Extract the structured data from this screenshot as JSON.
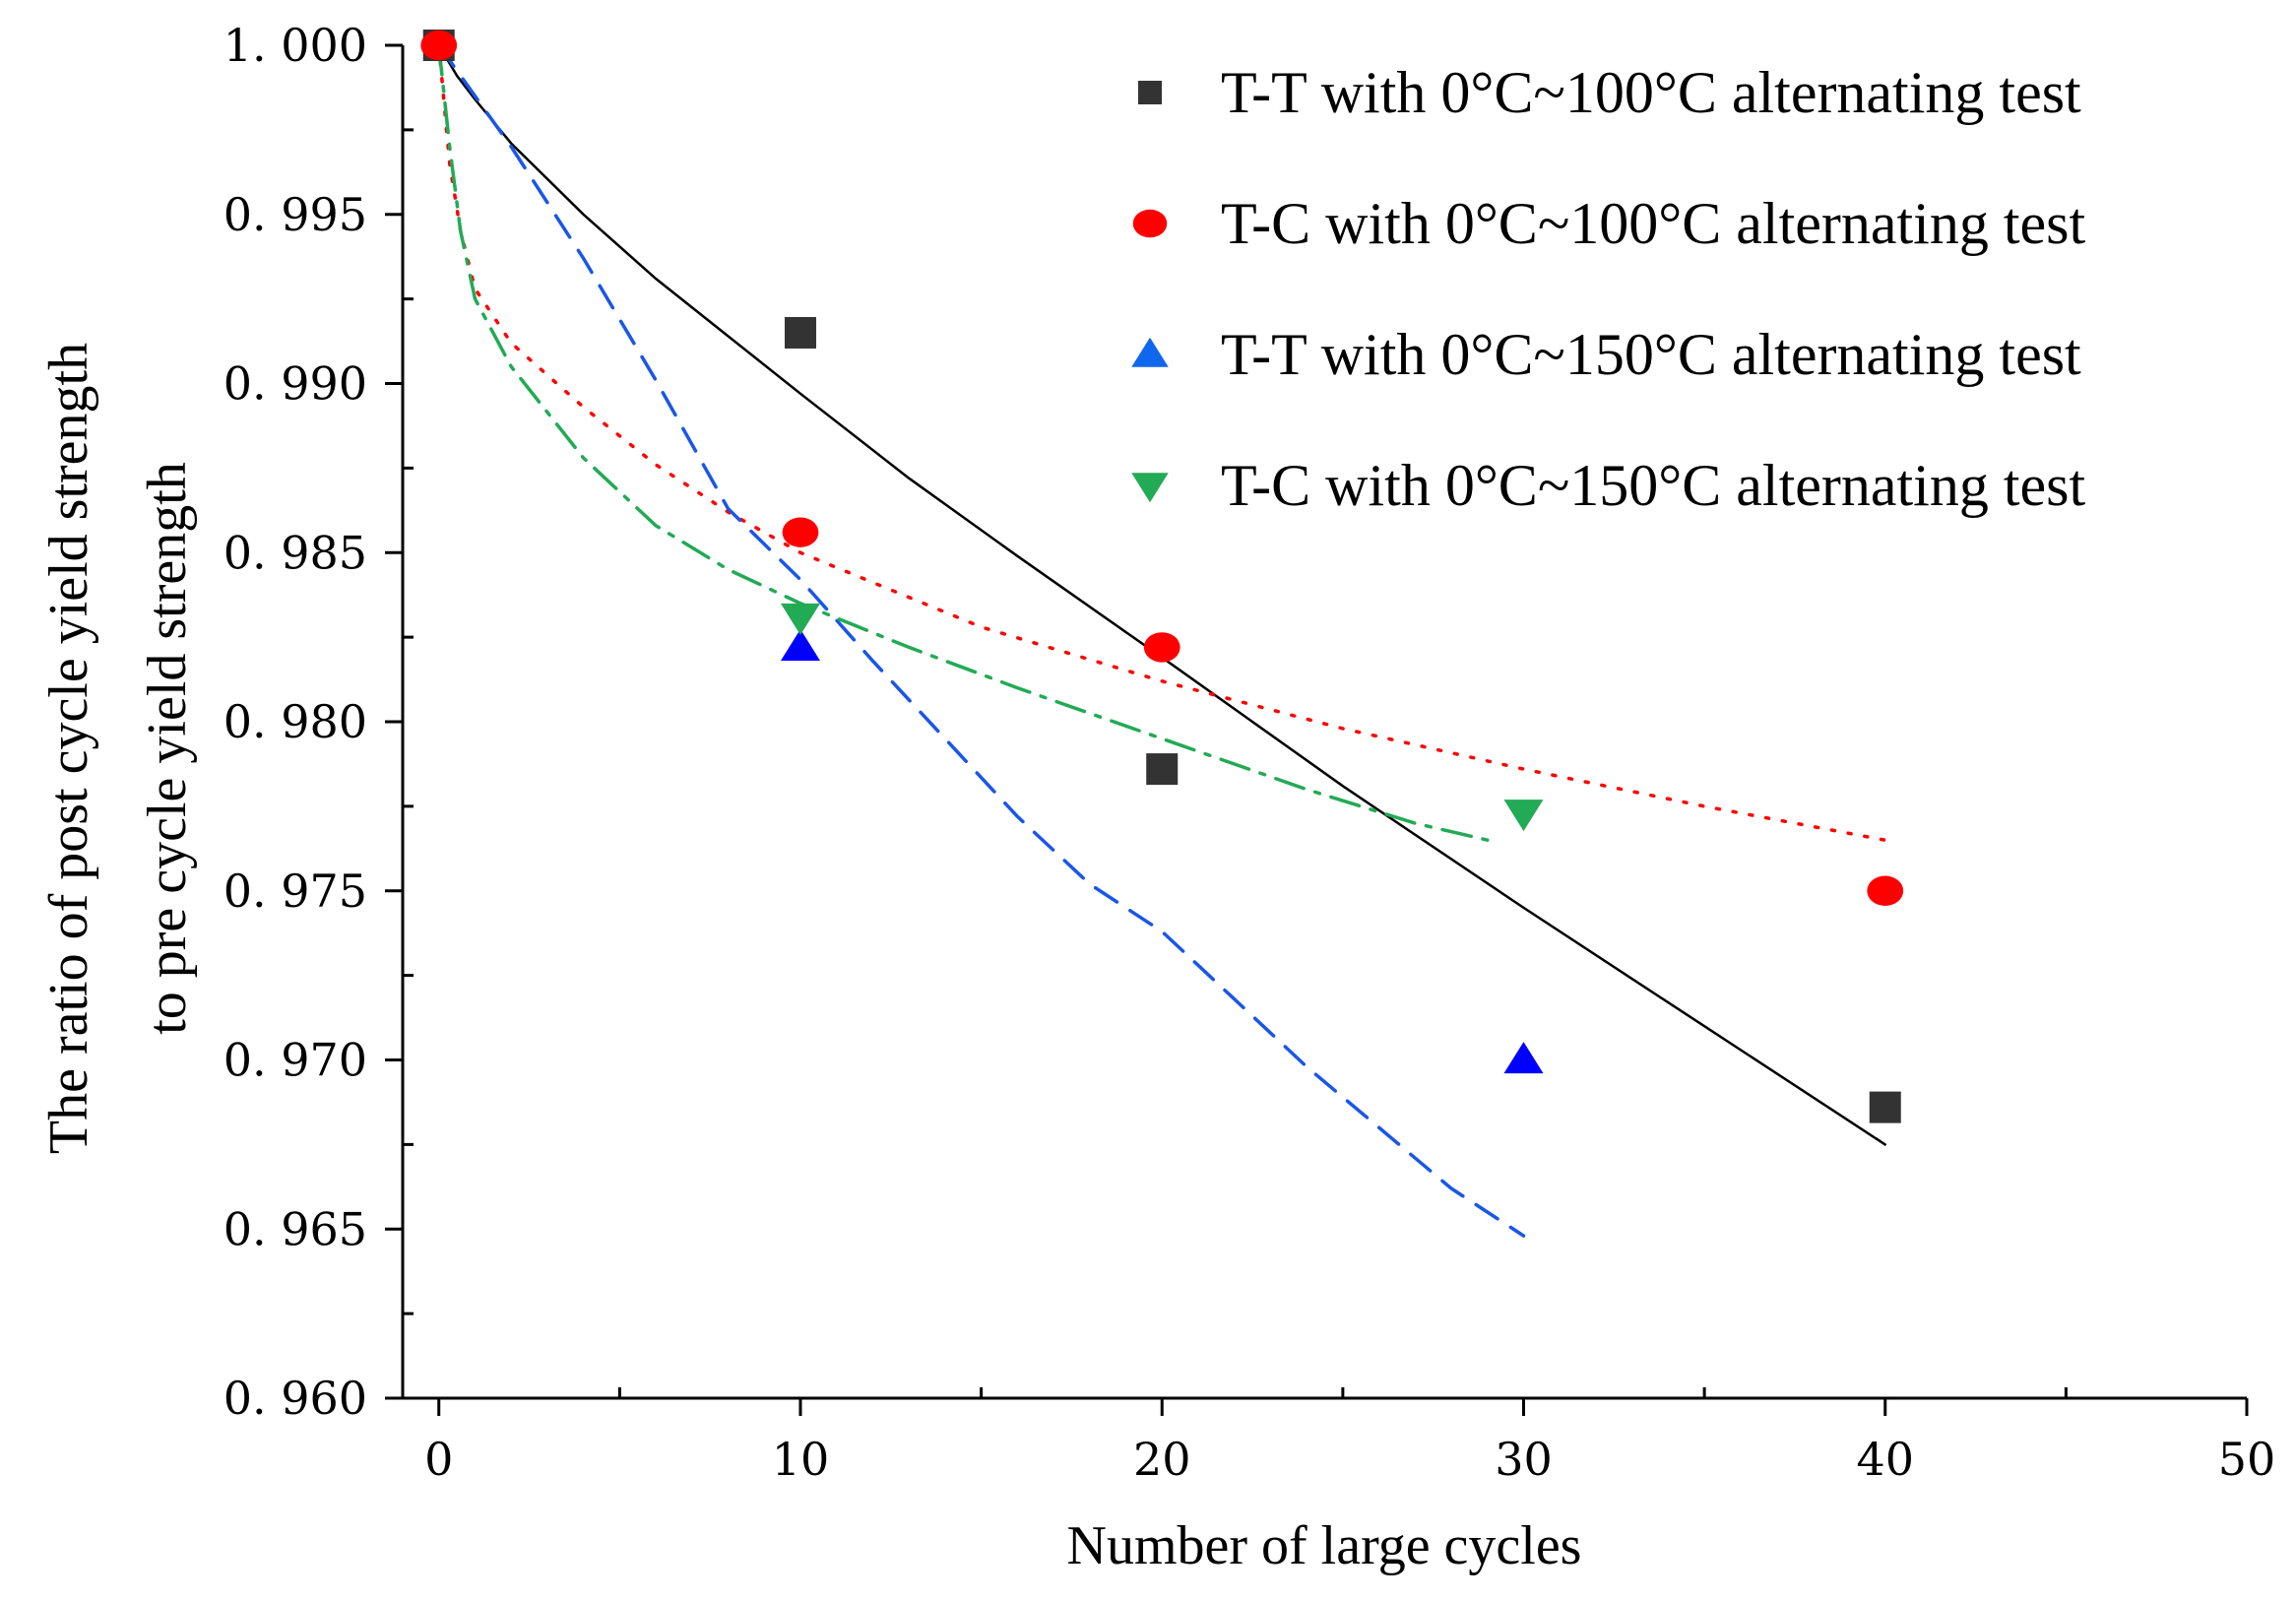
{
  "chart_data": {
    "type": "scatter",
    "xlabel": "Number of large cycles",
    "ylabel_lines": [
      "The ratio of post cycle yield strength",
      "to pre cycle yield strength"
    ],
    "xlim": [
      -1,
      50
    ],
    "ylim": [
      0.96,
      1.0
    ],
    "x_ticks": [
      0,
      10,
      20,
      30,
      40,
      50
    ],
    "x_tick_labels": [
      "0",
      "10",
      "20",
      "30",
      "40",
      "50"
    ],
    "y_ticks": [
      0.96,
      0.965,
      0.97,
      0.975,
      0.98,
      0.985,
      0.99,
      0.995,
      1.0
    ],
    "y_tick_labels": [
      "0. 960",
      "0. 965",
      "0. 970",
      "0. 975",
      "0. 980",
      "0. 985",
      "0. 990",
      "0. 995",
      "1. 000"
    ],
    "legend_position": "top-right",
    "series": [
      {
        "name": "T-T with 0°C~100°C alternating test",
        "marker": "square",
        "color": "#333333",
        "fit_color": "#000000",
        "fit_style": "solid",
        "x": [
          0,
          10,
          20,
          40
        ],
        "y": [
          1.0,
          0.9915,
          0.9786,
          0.9686
        ],
        "fit_x": [
          0,
          0.5,
          1,
          2,
          4,
          6,
          8,
          10,
          13,
          16,
          20,
          25,
          30,
          35,
          40
        ],
        "fit_y": [
          1.0,
          0.9991,
          0.9984,
          0.9971,
          0.995,
          0.9931,
          0.9914,
          0.9897,
          0.9872,
          0.9849,
          0.9819,
          0.9781,
          0.9745,
          0.971,
          0.9675
        ]
      },
      {
        "name": "T-C with 0°C~100°C alternating test",
        "marker": "circle",
        "color": "#ff0000",
        "fit_color": "#ff0000",
        "fit_style": "dotted",
        "x": [
          0,
          10,
          20,
          40
        ],
        "y": [
          1.0,
          0.9856,
          0.9822,
          0.975
        ],
        "fit_x": [
          0,
          0.3,
          0.6,
          1,
          2,
          4,
          6,
          8,
          10,
          15,
          20,
          25,
          30,
          35,
          40
        ],
        "fit_y": [
          1.0,
          0.9965,
          0.9945,
          0.9928,
          0.9912,
          0.9893,
          0.9876,
          0.9862,
          0.985,
          0.9828,
          0.9812,
          0.9798,
          0.9786,
          0.9775,
          0.9765
        ]
      },
      {
        "name": "T-T with 0°C~150°C alternating test",
        "marker": "triangle-up",
        "color": "#0000ff",
        "fit_color": "#1a56e8",
        "fit_style": "dashed",
        "x": [
          10,
          30
        ],
        "y": [
          0.9822,
          0.97
        ],
        "fit_x": [
          0,
          2,
          4,
          6,
          8,
          10,
          12,
          14,
          16,
          18,
          20,
          22,
          24,
          26,
          28,
          30
        ],
        "fit_y": [
          1.0,
          0.997,
          0.9937,
          0.9901,
          0.9863,
          0.9842,
          0.9818,
          0.9795,
          0.9772,
          0.9752,
          0.9738,
          0.9718,
          0.9698,
          0.968,
          0.9662,
          0.9648
        ]
      },
      {
        "name": "T-C with 0°C~150°C alternating test",
        "marker": "triangle-down",
        "color": "#22aa55",
        "fit_color": "#22aa55",
        "fit_style": "dashdot",
        "x": [
          10,
          30
        ],
        "y": [
          0.9831,
          0.9773
        ],
        "fit_x": [
          0,
          0.3,
          0.6,
          1,
          2,
          4,
          6,
          8,
          10,
          13,
          16,
          20,
          24,
          27,
          29
        ],
        "fit_y": [
          1.0,
          0.997,
          0.9945,
          0.9925,
          0.9905,
          0.9878,
          0.9858,
          0.9845,
          0.9835,
          0.9822,
          0.981,
          0.9795,
          0.978,
          0.977,
          0.9765
        ]
      }
    ]
  }
}
